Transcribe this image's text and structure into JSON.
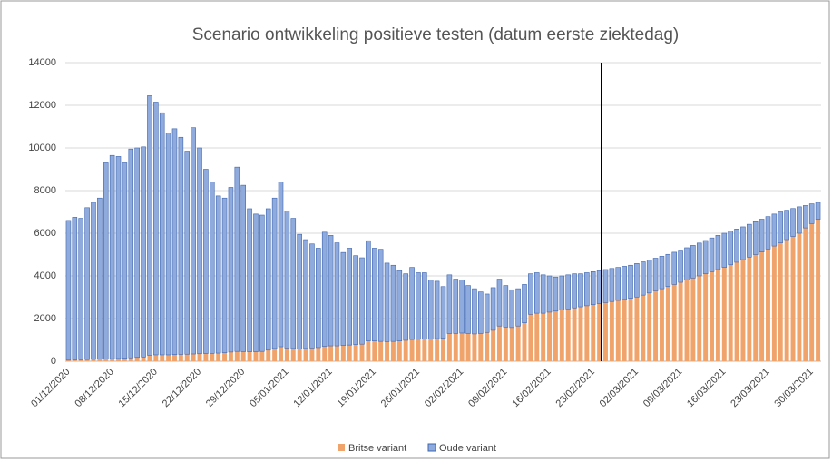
{
  "chart_data": {
    "type": "stacked_bar",
    "title": "Scenario ontwikkeling positieve testen (datum eerste ziektedag)",
    "categories": [
      "01/12/2020",
      null,
      null,
      null,
      null,
      null,
      null,
      "08/12/2020",
      null,
      null,
      null,
      null,
      null,
      null,
      "15/12/2020",
      null,
      null,
      null,
      null,
      null,
      null,
      "22/12/2020",
      null,
      null,
      null,
      null,
      null,
      null,
      "29/12/2020",
      null,
      null,
      null,
      null,
      null,
      null,
      "05/01/2021",
      null,
      null,
      null,
      null,
      null,
      null,
      "12/01/2021",
      null,
      null,
      null,
      null,
      null,
      null,
      "19/01/2021",
      null,
      null,
      null,
      null,
      null,
      null,
      "26/01/2021",
      null,
      null,
      null,
      null,
      null,
      null,
      "02/02/2021",
      null,
      null,
      null,
      null,
      null,
      null,
      "09/02/2021",
      null,
      null,
      null,
      null,
      null,
      null,
      "16/02/2021",
      null,
      null,
      null,
      null,
      null,
      null,
      "23/02/2021",
      null,
      null,
      null,
      null,
      null,
      null,
      "02/03/2021",
      null,
      null,
      null,
      null,
      null,
      null,
      "09/03/2021",
      null,
      null,
      null,
      null,
      null,
      null,
      "16/03/2021",
      null,
      null,
      null,
      null,
      null,
      null,
      "23/03/2021",
      null,
      null,
      null,
      null,
      null,
      null,
      "30/03/2021",
      null
    ],
    "series": [
      {
        "name": "Britse variant",
        "color": "#f0a46c",
        "values": [
          50,
          60,
          70,
          80,
          90,
          100,
          110,
          120,
          130,
          140,
          160,
          180,
          200,
          280,
          300,
          300,
          300,
          310,
          320,
          330,
          340,
          350,
          360,
          370,
          380,
          400,
          430,
          460,
          450,
          440,
          440,
          460,
          520,
          600,
          680,
          620,
          600,
          580,
          600,
          620,
          640,
          700,
          720,
          720,
          740,
          760,
          780,
          800,
          950,
          950,
          930,
          920,
          930,
          950,
          980,
          1020,
          1030,
          1040,
          1050,
          1060,
          1080,
          1300,
          1300,
          1320,
          1300,
          1280,
          1300,
          1350,
          1450,
          1650,
          1600,
          1580,
          1650,
          1800,
          2200,
          2250,
          2250,
          2300,
          2350,
          2400,
          2450,
          2500,
          2550,
          2600,
          2650,
          2700,
          2750,
          2800,
          2850,
          2900,
          2950,
          3010,
          3100,
          3200,
          3300,
          3400,
          3500,
          3600,
          3700,
          3800,
          3900,
          4000,
          4100,
          4200,
          4300,
          4400,
          4520,
          4640,
          4760,
          4880,
          5000,
          5120,
          5260,
          5400,
          5550,
          5700,
          5850,
          6000,
          6250,
          6450,
          6650
        ]
      },
      {
        "name": "Oude variant",
        "color": "#8faadc",
        "values": [
          6550,
          6690,
          6630,
          7120,
          7360,
          7550,
          9190,
          9530,
          9470,
          9160,
          9790,
          9820,
          9850,
          12170,
          11850,
          11350,
          10400,
          10590,
          10180,
          9520,
          10610,
          9650,
          8640,
          8030,
          7370,
          7250,
          7720,
          8640,
          7800,
          6710,
          6460,
          6390,
          6630,
          7050,
          7720,
          6430,
          6100,
          5370,
          5100,
          4880,
          4660,
          5350,
          5180,
          4830,
          4360,
          4540,
          4170,
          4050,
          4700,
          4350,
          4320,
          3680,
          3570,
          3300,
          3120,
          3380,
          3120,
          3110,
          2750,
          2690,
          2420,
          2750,
          2550,
          2480,
          2250,
          2120,
          1950,
          1800,
          2000,
          2200,
          1950,
          1770,
          1750,
          1800,
          1900,
          1900,
          1800,
          1700,
          1600,
          1600,
          1600,
          1600,
          1550,
          1550,
          1550,
          1550,
          1550,
          1550,
          1550,
          1550,
          1550,
          1570,
          1560,
          1540,
          1530,
          1520,
          1510,
          1510,
          1510,
          1520,
          1530,
          1540,
          1560,
          1580,
          1600,
          1600,
          1580,
          1560,
          1540,
          1540,
          1540,
          1540,
          1520,
          1500,
          1450,
          1380,
          1310,
          1240,
          1050,
          930,
          800
        ]
      }
    ],
    "ylim": [
      0,
      14000
    ],
    "yticks": [
      0,
      2000,
      4000,
      6000,
      8000,
      10000,
      12000,
      14000
    ],
    "grid": true,
    "legend": "bottom"
  }
}
